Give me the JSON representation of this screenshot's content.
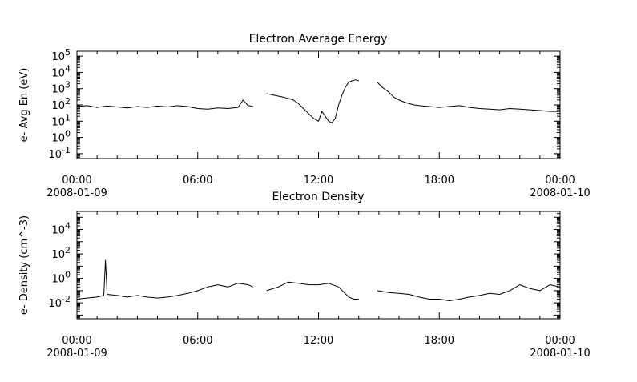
{
  "chart_data": [
    {
      "type": "line",
      "title": "Electron Average Energy",
      "ylabel": "e- Avg En (eV)",
      "xlabel": "",
      "yscale": "log",
      "ylim": [
        0.05,
        200000
      ],
      "xlim": [
        "2008-01-09 00:00",
        "2008-01-10 00:00"
      ],
      "x_ticks": [
        "00:00",
        "06:00",
        "12:00",
        "18:00",
        "00:00"
      ],
      "x_tick_dates": [
        "2008-01-09",
        "",
        "",
        "",
        "2008-01-10"
      ],
      "y_ticks": [
        {
          "base": "10",
          "exp": "-1"
        },
        {
          "base": "10",
          "exp": "0"
        },
        {
          "base": "10",
          "exp": "1"
        },
        {
          "base": "10",
          "exp": "2"
        },
        {
          "base": "10",
          "exp": "3"
        },
        {
          "base": "10",
          "exp": "4"
        },
        {
          "base": "10",
          "exp": "5"
        }
      ],
      "grid": false,
      "series": [
        {
          "x": [
            "2008-01-09 00:00",
            "2008-01-09 00:30",
            "2008-01-09 01:00",
            "2008-01-09 01:30",
            "2008-01-09 02:00",
            "2008-01-09 02:30",
            "2008-01-09 03:00",
            "2008-01-09 03:30",
            "2008-01-09 04:00",
            "2008-01-09 04:30",
            "2008-01-09 05:00",
            "2008-01-09 05:30",
            "2008-01-09 06:00",
            "2008-01-09 06:30",
            "2008-01-09 07:00",
            "2008-01-09 07:30",
            "2008-01-09 08:00",
            "2008-01-09 08:15",
            "2008-01-09 08:30",
            "2008-01-09 08:45",
            null,
            "2008-01-09 09:25",
            "2008-01-09 09:45",
            "2008-01-09 10:00",
            "2008-01-09 10:15",
            "2008-01-09 10:30",
            "2008-01-09 10:45",
            "2008-01-09 11:00",
            "2008-01-09 11:15",
            "2008-01-09 11:30",
            "2008-01-09 11:45",
            "2008-01-09 12:00",
            "2008-01-09 12:10",
            "2008-01-09 12:20",
            "2008-01-09 12:30",
            "2008-01-09 12:40",
            "2008-01-09 12:50",
            "2008-01-09 13:00",
            "2008-01-09 13:10",
            "2008-01-09 13:20",
            "2008-01-09 13:30",
            "2008-01-09 13:40",
            "2008-01-09 13:50",
            "2008-01-09 14:00",
            null,
            "2008-01-09 14:55",
            "2008-01-09 15:10",
            "2008-01-09 15:30",
            "2008-01-09 15:45",
            "2008-01-09 16:00",
            "2008-01-09 16:15",
            "2008-01-09 16:30",
            "2008-01-09 16:45",
            "2008-01-09 17:00",
            "2008-01-09 17:30",
            "2008-01-09 18:00",
            "2008-01-09 18:30",
            "2008-01-09 19:00",
            "2008-01-09 19:30",
            "2008-01-09 20:00",
            "2008-01-09 20:30",
            "2008-01-09 21:00",
            "2008-01-09 21:30",
            "2008-01-09 22:00",
            "2008-01-09 22:30",
            "2008-01-09 23:00",
            "2008-01-09 23:30",
            "2008-01-10 00:00"
          ],
          "y": [
            80,
            90,
            70,
            85,
            75,
            65,
            80,
            70,
            85,
            75,
            90,
            80,
            60,
            55,
            65,
            60,
            70,
            200,
            90,
            80,
            null,
            500,
            400,
            350,
            300,
            250,
            200,
            120,
            60,
            30,
            15,
            10,
            40,
            20,
            10,
            8,
            15,
            100,
            400,
            1200,
            2500,
            3000,
            3500,
            3000,
            null,
            2500,
            1200,
            600,
            300,
            200,
            150,
            120,
            100,
            90,
            80,
            70,
            80,
            90,
            70,
            60,
            55,
            50,
            60,
            55,
            50,
            45,
            40,
            40
          ]
        }
      ]
    },
    {
      "type": "line",
      "title": "Electron Density",
      "ylabel": "e- Density (cm^-3)",
      "xlabel": "",
      "yscale": "log",
      "ylim": [
        0.0005,
        300000
      ],
      "xlim": [
        "2008-01-09 00:00",
        "2008-01-10 00:00"
      ],
      "x_ticks": [
        "00:00",
        "06:00",
        "12:00",
        "18:00",
        "00:00"
      ],
      "x_tick_dates": [
        "2008-01-09",
        "",
        "",
        "",
        "2008-01-10"
      ],
      "y_ticks": [
        {
          "base": "10",
          "exp": "-2"
        },
        {
          "base": "10",
          "exp": "0"
        },
        {
          "base": "10",
          "exp": "2"
        },
        {
          "base": "10",
          "exp": "4"
        }
      ],
      "grid": false,
      "series": [
        {
          "x": [
            "2008-01-09 00:00",
            "2008-01-09 00:30",
            "2008-01-09 01:00",
            "2008-01-09 01:20",
            "2008-01-09 01:25",
            "2008-01-09 01:30",
            "2008-01-09 02:00",
            "2008-01-09 02:30",
            "2008-01-09 03:00",
            "2008-01-09 03:30",
            "2008-01-09 04:00",
            "2008-01-09 04:30",
            "2008-01-09 05:00",
            "2008-01-09 05:30",
            "2008-01-09 06:00",
            "2008-01-09 06:30",
            "2008-01-09 07:00",
            "2008-01-09 07:30",
            "2008-01-09 08:00",
            "2008-01-09 08:30",
            "2008-01-09 08:45",
            null,
            "2008-01-09 09:25",
            "2008-01-09 10:00",
            "2008-01-09 10:30",
            "2008-01-09 11:00",
            "2008-01-09 11:30",
            "2008-01-09 12:00",
            "2008-01-09 12:30",
            "2008-01-09 13:00",
            "2008-01-09 13:30",
            "2008-01-09 13:45",
            "2008-01-09 14:00",
            null,
            "2008-01-09 14:55",
            "2008-01-09 15:30",
            "2008-01-09 16:00",
            "2008-01-09 16:30",
            "2008-01-09 17:00",
            "2008-01-09 17:30",
            "2008-01-09 18:00",
            "2008-01-09 18:30",
            "2008-01-09 19:00",
            "2008-01-09 19:30",
            "2008-01-09 20:00",
            "2008-01-09 20:30",
            "2008-01-09 21:00",
            "2008-01-09 21:30",
            "2008-01-09 22:00",
            "2008-01-09 22:30",
            "2008-01-09 23:00",
            "2008-01-09 23:30",
            "2008-01-10 00:00"
          ],
          "y": [
            0.02,
            0.025,
            0.03,
            0.04,
            30,
            0.05,
            0.04,
            0.03,
            0.04,
            0.03,
            0.025,
            0.03,
            0.04,
            0.06,
            0.1,
            0.2,
            0.3,
            0.2,
            0.4,
            0.3,
            0.2,
            null,
            0.1,
            0.2,
            0.5,
            0.4,
            0.3,
            0.3,
            0.4,
            0.2,
            0.03,
            0.02,
            0.02,
            null,
            0.1,
            0.07,
            0.06,
            0.05,
            0.03,
            0.02,
            0.02,
            0.015,
            0.02,
            0.03,
            0.04,
            0.06,
            0.05,
            0.1,
            0.3,
            0.15,
            0.1,
            0.3,
            0.2
          ]
        }
      ]
    }
  ]
}
